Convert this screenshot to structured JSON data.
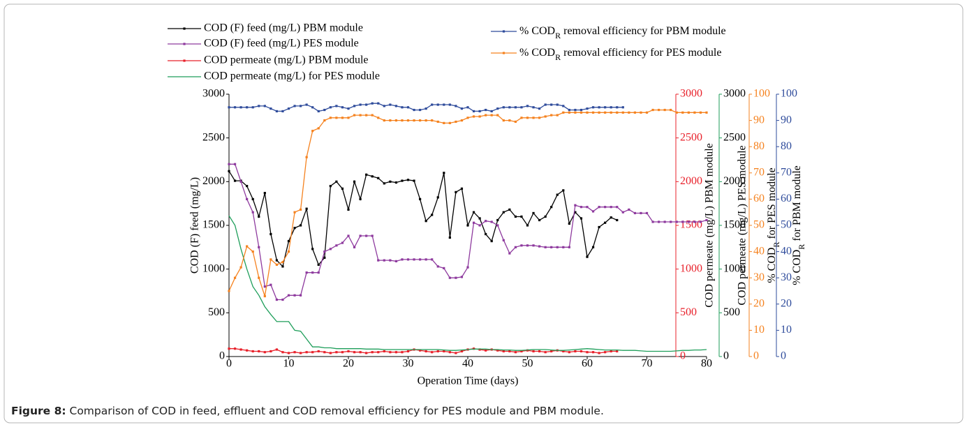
{
  "chart_data": {
    "type": "line",
    "x_label": "Operation Time (days)",
    "y_label": "COD (F)  feed (mg/L)",
    "y2_label": "COD permeate (mg/L) PBM module",
    "y3_label": "COD permeate (mg/L) PES module",
    "y4_label": [
      "% COD",
      "R",
      " for PES module"
    ],
    "y5_label": [
      "% COD",
      "R",
      " for PBM module"
    ],
    "x": [
      0,
      1,
      2,
      3,
      4,
      5,
      6,
      7,
      8,
      9,
      10,
      11,
      12,
      13,
      14,
      15,
      16,
      17,
      18,
      19,
      20,
      21,
      22,
      23,
      24,
      25,
      26,
      27,
      28,
      29,
      30,
      31,
      32,
      33,
      34,
      35,
      36,
      37,
      38,
      39,
      40,
      41,
      42,
      43,
      44,
      45,
      46,
      47,
      48,
      49,
      50,
      51,
      52,
      53,
      54,
      55,
      56,
      57,
      58,
      59,
      60,
      61,
      62,
      63,
      64,
      65,
      66,
      67,
      68,
      69,
      70,
      71,
      72,
      73,
      74,
      75,
      76,
      77,
      78,
      79,
      80
    ],
    "xlim": [
      0,
      80
    ],
    "xticks": [
      0,
      10,
      20,
      30,
      40,
      50,
      60,
      70,
      80
    ],
    "ylim": [
      0,
      3000
    ],
    "yticks": [
      0,
      500,
      1000,
      1500,
      2000,
      2500,
      3000
    ],
    "y2lim": [
      0,
      3000
    ],
    "y2ticks": [
      0,
      500,
      1000,
      1500,
      2000,
      2500,
      3000
    ],
    "y3lim": [
      0,
      3000
    ],
    "y3ticks": [
      0,
      500,
      1000,
      1500,
      2000,
      2500,
      3000
    ],
    "y4lim": [
      0,
      100
    ],
    "y4ticks": [
      0,
      10,
      20,
      30,
      40,
      50,
      60,
      70,
      80,
      90,
      100
    ],
    "y5lim": [
      0,
      100
    ],
    "y5ticks": [
      0,
      10,
      20,
      30,
      40,
      50,
      60,
      70,
      80,
      90,
      100
    ],
    "series": [
      {
        "name": "COD (F)  feed (mg/L) PBM module",
        "color": "#000000",
        "markers": true,
        "axis": "y",
        "values": [
          2120,
          2010,
          2010,
          1950,
          1800,
          1600,
          1870,
          1400,
          1100,
          1030,
          1320,
          1470,
          1500,
          1690,
          1230,
          1050,
          1130,
          1950,
          2000,
          1920,
          1680,
          2000,
          1800,
          2080,
          2060,
          2040,
          1980,
          2000,
          1990,
          2010,
          2020,
          2010,
          1800,
          1550,
          1620,
          1820,
          2100,
          1360,
          1880,
          1920,
          1500,
          1650,
          1580,
          1400,
          1320,
          1560,
          1650,
          1680,
          1600,
          1600,
          1500,
          1640,
          1560,
          1600,
          1710,
          1850,
          1900,
          1520,
          1650,
          1580,
          1140,
          1250,
          1480,
          1530,
          1590,
          1560,
          null,
          null,
          null,
          null,
          null,
          null,
          null,
          null,
          null,
          null,
          null,
          null,
          null,
          null,
          null
        ]
      },
      {
        "name": "COD (F)  feed (mg/L) PES module",
        "color": "#8e3a9e",
        "markers": true,
        "axis": "y",
        "values": [
          2200,
          2200,
          2000,
          1800,
          1650,
          1250,
          800,
          820,
          650,
          650,
          700,
          700,
          700,
          960,
          960,
          960,
          1200,
          1230,
          1270,
          1300,
          1380,
          1250,
          1380,
          1380,
          1380,
          1100,
          1100,
          1100,
          1090,
          1110,
          1110,
          1110,
          1110,
          1110,
          1110,
          1030,
          1010,
          900,
          900,
          910,
          1020,
          1530,
          1500,
          1550,
          1540,
          1500,
          1330,
          1180,
          1250,
          1270,
          1270,
          1270,
          1260,
          1250,
          1250,
          1250,
          1250,
          1250,
          1730,
          1710,
          1710,
          1660,
          1710,
          1710,
          1710,
          1710,
          1650,
          1680,
          1640,
          1640,
          1640,
          1540,
          1540,
          1540,
          1540,
          1540,
          1540,
          1540,
          1540,
          1540,
          1560
        ]
      },
      {
        "name": "COD permeate (mg/L) PBM module",
        "color": "#e8202a",
        "markers": true,
        "axis": "y2",
        "values": [
          90,
          90,
          80,
          70,
          60,
          60,
          50,
          60,
          80,
          50,
          40,
          50,
          40,
          50,
          50,
          60,
          50,
          40,
          50,
          50,
          60,
          50,
          50,
          40,
          50,
          50,
          60,
          50,
          50,
          50,
          60,
          80,
          70,
          60,
          50,
          60,
          60,
          50,
          40,
          60,
          80,
          90,
          80,
          70,
          80,
          70,
          60,
          60,
          50,
          60,
          70,
          60,
          60,
          50,
          60,
          70,
          60,
          50,
          60,
          60,
          50,
          50,
          40,
          50,
          60,
          60,
          null,
          null,
          null,
          null,
          null,
          null,
          null,
          null,
          null,
          null,
          null,
          null,
          null,
          null,
          null
        ]
      },
      {
        "name": "COD permeate (mg/L) for PES module",
        "color": "#1e9e5a",
        "markers": false,
        "axis": "y3",
        "values": [
          1610,
          1500,
          1230,
          1000,
          800,
          700,
          570,
          480,
          400,
          400,
          400,
          300,
          290,
          200,
          110,
          110,
          100,
          100,
          90,
          90,
          90,
          90,
          90,
          85,
          85,
          85,
          80,
          80,
          80,
          80,
          80,
          80,
          80,
          80,
          80,
          80,
          75,
          70,
          70,
          75,
          80,
          85,
          85,
          85,
          80,
          80,
          75,
          75,
          70,
          70,
          75,
          80,
          80,
          80,
          75,
          70,
          70,
          75,
          80,
          85,
          90,
          85,
          80,
          75,
          75,
          75,
          70,
          70,
          70,
          65,
          60,
          60,
          60,
          60,
          60,
          65,
          70,
          70,
          75,
          75,
          80
        ]
      },
      {
        "name": [
          "% COD",
          "R",
          " removal efficiency for PBM module"
        ],
        "color": "#2e4b9b",
        "markers": true,
        "axis": "y5",
        "values": [
          95,
          95,
          95,
          95,
          95,
          95.5,
          95.5,
          94.5,
          93.5,
          93.5,
          94.5,
          95.5,
          95.5,
          96,
          95,
          93.5,
          94,
          95,
          95.5,
          95,
          94.5,
          95.5,
          96,
          96,
          96.5,
          96.5,
          95.5,
          96,
          95.5,
          95,
          95,
          94,
          94,
          94.5,
          96,
          96,
          96,
          96,
          95.5,
          94.5,
          95,
          93.5,
          93.5,
          94,
          93.5,
          94.5,
          95,
          95,
          95,
          95,
          95.5,
          95,
          94.5,
          96,
          96,
          96,
          95.5,
          94,
          94,
          94,
          94.5,
          95,
          95,
          95,
          95,
          95,
          95,
          null,
          null,
          null,
          null,
          null,
          null,
          null,
          null,
          null,
          null,
          null,
          null,
          null,
          null
        ]
      },
      {
        "name": [
          "% COD",
          "R",
          " removal efficiency for PES module"
        ],
        "color": "#f5821f",
        "markers": true,
        "axis": "y4",
        "values": [
          25,
          30,
          34,
          42,
          40,
          30,
          23,
          37,
          35,
          36,
          40,
          55,
          56,
          76,
          86,
          87,
          90,
          91,
          91,
          91,
          91,
          92,
          92,
          92,
          92,
          91,
          90,
          90,
          90,
          90,
          90,
          90,
          90,
          90,
          90,
          89.5,
          89,
          89,
          89.5,
          90,
          91,
          91.5,
          91.5,
          92,
          92,
          92,
          90,
          90,
          89.5,
          91,
          91,
          91,
          91,
          91.5,
          92,
          92,
          93,
          93,
          93,
          93,
          93,
          93,
          93,
          93,
          93,
          93,
          93,
          93,
          93,
          93,
          93,
          94,
          94,
          94,
          94,
          93,
          93,
          93,
          93,
          93,
          93
        ]
      }
    ]
  },
  "caption": {
    "label": "Figure 8:",
    "text": " Comparison of COD in feed, effluent and COD removal efficiency for PES module and PBM module."
  }
}
